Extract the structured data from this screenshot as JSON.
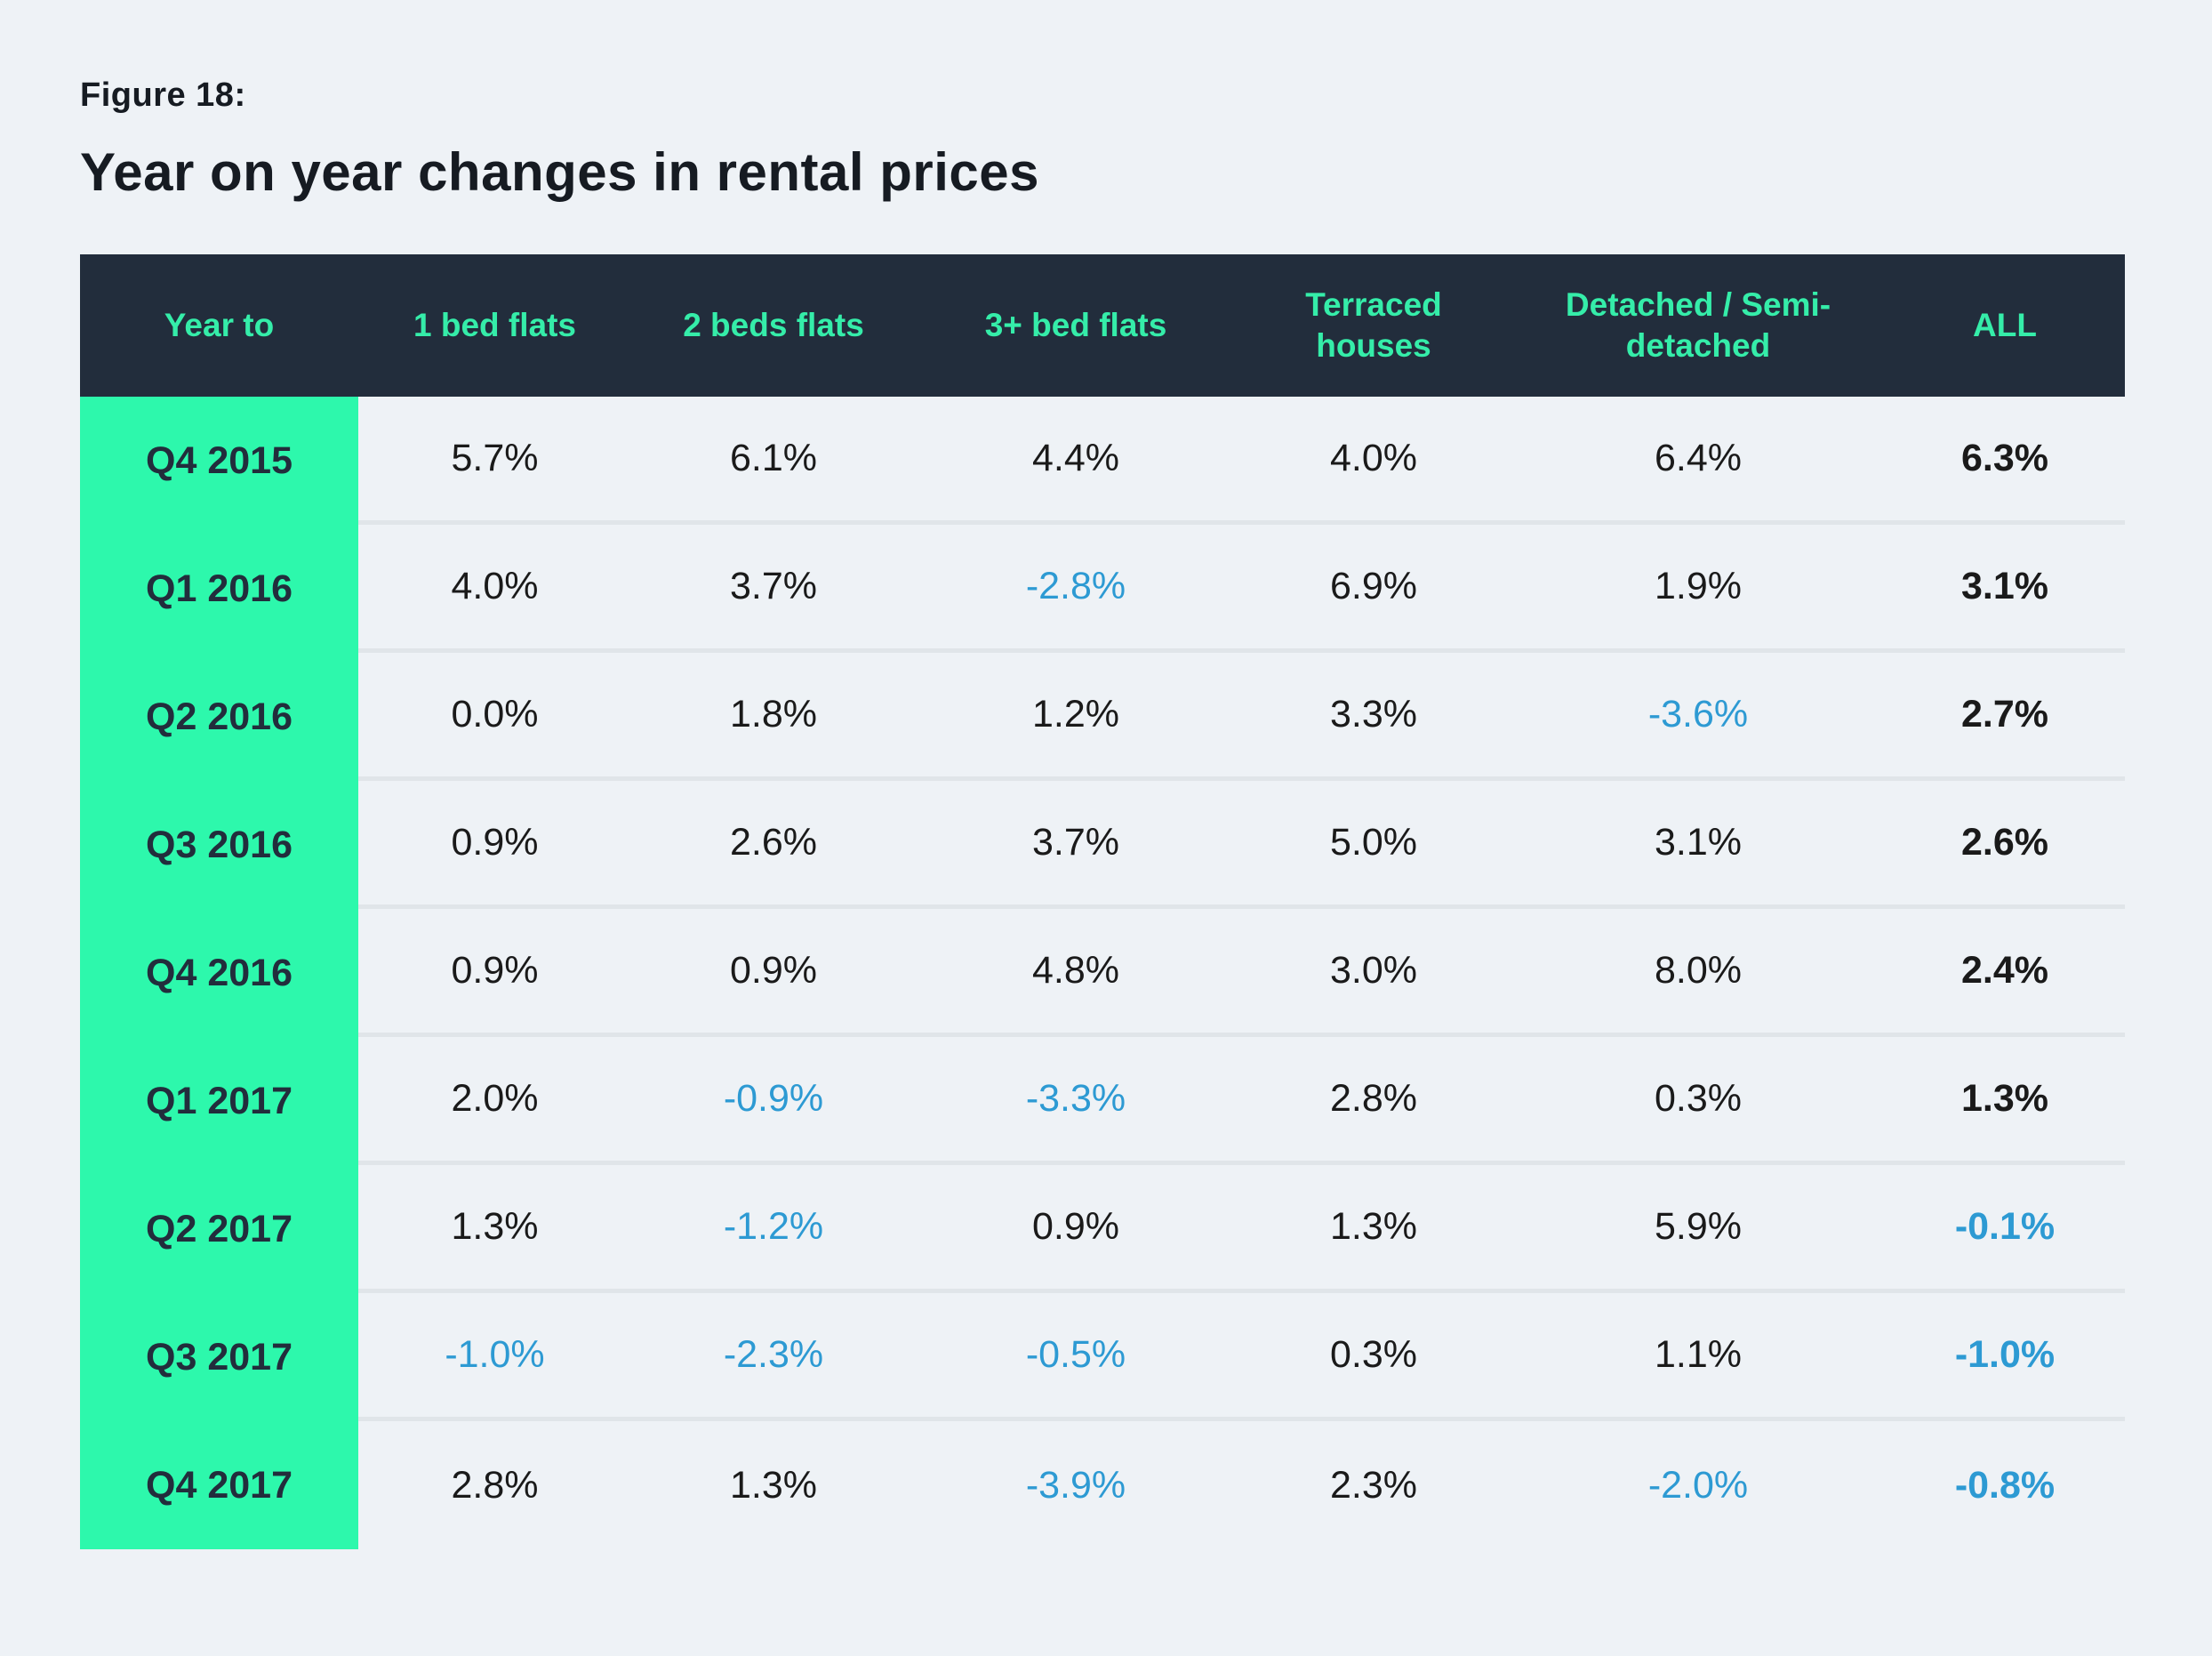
{
  "title": {
    "figure_label": "Figure 18:",
    "heading": "Year on year changes in rental prices"
  },
  "table": {
    "columns": [
      "Year to",
      "1 bed flats",
      "2 beds flats",
      "3+ bed flats",
      "Terraced houses",
      "Detached / Semi-detached",
      "ALL"
    ],
    "rows": [
      {
        "label": "Q4 2015",
        "values": [
          "5.7%",
          "6.1%",
          "4.4%",
          "4.0%",
          "6.4%",
          "6.3%"
        ]
      },
      {
        "label": "Q1 2016",
        "values": [
          "4.0%",
          "3.7%",
          "-2.8%",
          "6.9%",
          "1.9%",
          "3.1%"
        ]
      },
      {
        "label": "Q2 2016",
        "values": [
          "0.0%",
          "1.8%",
          "1.2%",
          "3.3%",
          "-3.6%",
          "2.7%"
        ]
      },
      {
        "label": "Q3 2016",
        "values": [
          "0.9%",
          "2.6%",
          "3.7%",
          "5.0%",
          "3.1%",
          "2.6%"
        ]
      },
      {
        "label": "Q4 2016",
        "values": [
          "0.9%",
          "0.9%",
          "4.8%",
          "3.0%",
          "8.0%",
          "2.4%"
        ]
      },
      {
        "label": "Q1 2017",
        "values": [
          "2.0%",
          "-0.9%",
          "-3.3%",
          "2.8%",
          "0.3%",
          "1.3%"
        ]
      },
      {
        "label": "Q2 2017",
        "values": [
          "1.3%",
          "-1.2%",
          "0.9%",
          "1.3%",
          "5.9%",
          "-0.1%"
        ]
      },
      {
        "label": "Q3 2017",
        "values": [
          "-1.0%",
          "-2.3%",
          "-0.5%",
          "0.3%",
          "1.1%",
          "-1.0%"
        ]
      },
      {
        "label": "Q4 2017",
        "values": [
          "2.8%",
          "1.3%",
          "-3.9%",
          "2.3%",
          "-2.0%",
          "-0.8%"
        ]
      }
    ]
  },
  "colors": {
    "background": "#EEF2F6",
    "header_background": "#222D3C",
    "header_text": "#35EDA9",
    "label_column_background": "#2DF8AC",
    "label_text": "#222D3C",
    "value_text": "#1A1A1A",
    "negative_value_text": "#2D9AD3",
    "row_divider": "#E0E5E9"
  },
  "chart_data": {
    "type": "table",
    "title": "Year on year changes in rental prices",
    "figure_label": "Figure 18:",
    "columns": [
      "Year to",
      "1 bed flats",
      "2 beds flats",
      "3+ bed flats",
      "Terraced houses",
      "Detached / Semi-detached",
      "ALL"
    ],
    "rows": [
      [
        "Q4 2015",
        5.7,
        6.1,
        4.4,
        4.0,
        6.4,
        6.3
      ],
      [
        "Q1 2016",
        4.0,
        3.7,
        -2.8,
        6.9,
        1.9,
        3.1
      ],
      [
        "Q2 2016",
        0.0,
        1.8,
        1.2,
        3.3,
        -3.6,
        2.7
      ],
      [
        "Q3 2016",
        0.9,
        2.6,
        3.7,
        5.0,
        3.1,
        2.6
      ],
      [
        "Q4 2016",
        0.9,
        0.9,
        4.8,
        3.0,
        8.0,
        2.4
      ],
      [
        "Q1 2017",
        2.0,
        -0.9,
        -3.3,
        2.8,
        0.3,
        1.3
      ],
      [
        "Q2 2017",
        1.3,
        -1.2,
        0.9,
        1.3,
        5.9,
        -0.1
      ],
      [
        "Q3 2017",
        -1.0,
        -2.3,
        -0.5,
        0.3,
        1.1,
        -1.0
      ],
      [
        "Q4 2017",
        2.8,
        1.3,
        -3.9,
        2.3,
        -2.0,
        -0.8
      ]
    ],
    "units": "percent",
    "notes": "Negative values shown in blue; ALL column and row labels bold; quarter labels on mint-green column; header row dark navy with teal text"
  }
}
